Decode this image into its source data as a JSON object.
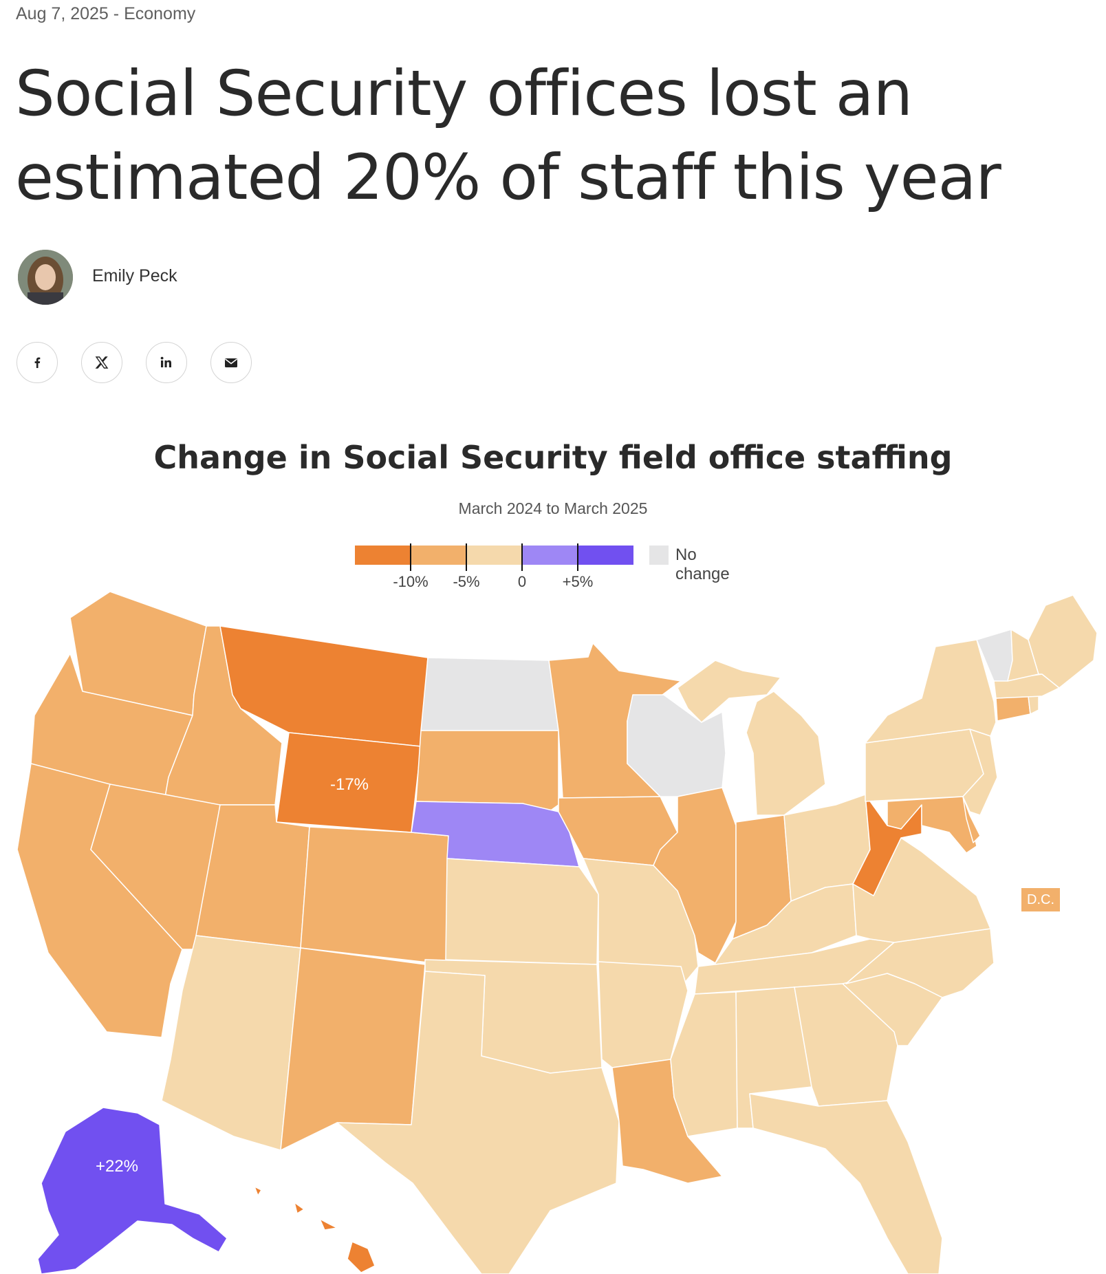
{
  "article": {
    "date": "Aug 7, 2025",
    "separator": "-",
    "section": "Economy",
    "headline_line1": "Social Security offices lost an",
    "headline_line2": "estimated 20% of staff this year",
    "author": "Emily Peck"
  },
  "share": [
    {
      "icon": "facebook-icon"
    },
    {
      "icon": "x-icon"
    },
    {
      "icon": "linkedin-icon"
    },
    {
      "icon": "email-icon"
    }
  ],
  "colors": {
    "dark_orange": "#ed8232",
    "mid_orange": "#f2b06b",
    "light_orange": "#f5d9ac",
    "light_purple": "#9e87f5",
    "dark_purple": "#7150f0",
    "no_change": "#e5e5e6"
  },
  "chart_data": {
    "type": "choropleth",
    "title": "Change in Social Security field office staffing",
    "subtitle": "March 2024 to March 2025",
    "legend": {
      "tick_labels": [
        "-10%",
        "-5%",
        "0",
        "+5%"
      ],
      "no_change_label": "No change"
    },
    "labels": {
      "WY": "-17%",
      "AK": "+22%",
      "DC": "D.C."
    },
    "categories": {
      "dark_orange": [
        "MT",
        "WY",
        "WV",
        "HI"
      ],
      "mid_orange": [
        "WA",
        "OR",
        "CA",
        "ID",
        "NV",
        "UT",
        "CO",
        "NM",
        "SD",
        "MN",
        "IA",
        "IL",
        "IN",
        "LA",
        "MD",
        "CT",
        "DE",
        "DC"
      ],
      "light_orange": [
        "AZ",
        "TX",
        "KS",
        "OK",
        "MO",
        "AR",
        "MS",
        "AL",
        "GA",
        "FL",
        "SC",
        "NC",
        "TN",
        "KY",
        "VA",
        "OH",
        "MI",
        "PA",
        "NY",
        "NJ",
        "MA",
        "RI",
        "NH",
        "ME"
      ],
      "light_purple": [
        "NE"
      ],
      "dark_purple": [
        "AK"
      ],
      "no_change": [
        "ND",
        "WI",
        "VT"
      ]
    }
  }
}
